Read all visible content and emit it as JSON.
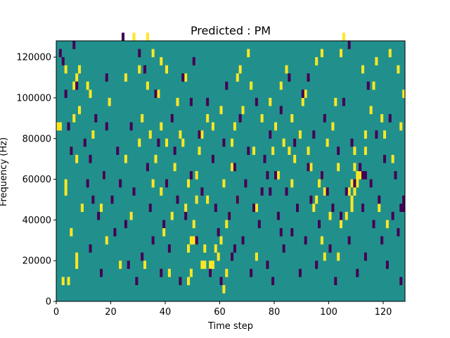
{
  "chart_data": {
    "type": "heatmap",
    "title": "Predicted : PM",
    "xlabel": "Time step",
    "ylabel": "Frequency (Hz)",
    "xlim": [
      0,
      128
    ],
    "ylim": [
      0,
      128000
    ],
    "x_ticks": [
      0,
      20,
      40,
      60,
      80,
      100,
      120
    ],
    "y_ticks": [
      0,
      20000,
      40000,
      60000,
      80000,
      100000,
      120000
    ],
    "x_tick_labels": [
      "0",
      "20",
      "40",
      "60",
      "80",
      "100",
      "120"
    ],
    "y_tick_labels": [
      "0",
      "20000",
      "40000",
      "60000",
      "80000",
      "100000",
      "120000"
    ],
    "n_time_steps": 128,
    "n_freq_bins": 32,
    "freq_bin_width_hz": 4000,
    "colormap": "viridis",
    "colors": {
      "background": "#21908c",
      "high": "#fde725",
      "low": "#440154"
    },
    "value_levels": {
      "low": -1,
      "background": 0,
      "high": 1
    },
    "high_cells": [
      [
        0,
        21
      ],
      [
        1,
        21
      ],
      [
        2,
        2
      ],
      [
        3,
        13
      ],
      [
        3,
        14
      ],
      [
        3,
        28
      ],
      [
        4,
        2
      ],
      [
        5,
        8
      ],
      [
        6,
        26
      ],
      [
        6,
        22
      ],
      [
        7,
        17
      ],
      [
        7,
        27
      ],
      [
        7,
        4
      ],
      [
        7,
        5
      ],
      [
        8,
        23
      ],
      [
        8,
        28
      ],
      [
        9,
        11
      ],
      [
        11,
        26
      ],
      [
        12,
        25
      ],
      [
        13,
        20
      ],
      [
        16,
        11
      ],
      [
        17,
        15
      ],
      [
        19,
        24
      ],
      [
        23,
        4
      ],
      [
        25,
        17
      ],
      [
        25,
        27
      ],
      [
        27,
        10
      ],
      [
        28,
        32
      ],
      [
        30,
        28
      ],
      [
        30,
        19
      ],
      [
        31,
        22
      ],
      [
        32,
        4
      ],
      [
        33,
        26
      ],
      [
        34,
        20
      ],
      [
        35,
        30
      ],
      [
        35,
        14
      ],
      [
        36,
        17
      ],
      [
        37,
        25
      ],
      [
        38,
        13
      ],
      [
        38,
        29
      ],
      [
        38,
        21
      ],
      [
        39,
        8
      ],
      [
        40,
        28
      ],
      [
        40,
        19
      ],
      [
        41,
        3
      ],
      [
        42,
        10
      ],
      [
        43,
        16
      ],
      [
        45,
        20
      ],
      [
        46,
        19
      ],
      [
        47,
        27
      ],
      [
        47,
        11
      ],
      [
        48,
        2
      ],
      [
        48,
        6
      ],
      [
        48,
        14
      ],
      [
        49,
        3
      ],
      [
        49,
        7
      ],
      [
        50,
        9
      ],
      [
        51,
        12
      ],
      [
        51,
        15
      ],
      [
        52,
        18
      ],
      [
        53,
        20
      ],
      [
        54,
        4
      ],
      [
        54,
        6
      ],
      [
        55,
        12
      ],
      [
        55,
        22
      ],
      [
        56,
        3
      ],
      [
        56,
        4
      ],
      [
        57,
        4
      ],
      [
        58,
        6
      ],
      [
        60,
        7
      ],
      [
        61,
        1
      ],
      [
        61,
        14
      ],
      [
        62,
        9
      ],
      [
        63,
        10
      ],
      [
        64,
        16
      ],
      [
        64,
        19
      ],
      [
        65,
        21
      ],
      [
        66,
        12
      ],
      [
        67,
        28
      ],
      [
        68,
        23
      ],
      [
        70,
        30
      ],
      [
        71,
        26
      ],
      [
        72,
        18
      ],
      [
        73,
        11
      ],
      [
        75,
        22
      ],
      [
        78,
        24
      ],
      [
        79,
        18
      ],
      [
        80,
        21
      ],
      [
        81,
        15
      ],
      [
        82,
        26
      ],
      [
        83,
        19
      ],
      [
        84,
        28
      ],
      [
        85,
        18
      ],
      [
        86,
        14
      ],
      [
        87,
        17
      ],
      [
        89,
        20
      ],
      [
        90,
        24
      ],
      [
        91,
        25
      ],
      [
        92,
        18
      ],
      [
        93,
        16
      ],
      [
        94,
        11
      ],
      [
        95,
        12
      ],
      [
        96,
        14
      ],
      [
        97,
        15
      ],
      [
        98,
        13
      ],
      [
        99,
        19
      ],
      [
        100,
        10
      ],
      [
        101,
        21
      ],
      [
        102,
        24
      ],
      [
        103,
        16
      ],
      [
        104,
        30
      ],
      [
        105,
        32
      ],
      [
        106,
        10
      ],
      [
        107,
        13
      ],
      [
        108,
        11
      ],
      [
        108,
        12
      ],
      [
        108,
        14
      ],
      [
        109,
        13
      ],
      [
        109,
        16
      ],
      [
        109,
        18
      ],
      [
        110,
        14
      ],
      [
        110,
        15
      ],
      [
        111,
        15
      ],
      [
        113,
        18
      ],
      [
        115,
        23
      ],
      [
        116,
        26
      ],
      [
        117,
        29
      ],
      [
        118,
        11
      ],
      [
        119,
        22
      ],
      [
        120,
        20
      ],
      [
        121,
        9
      ],
      [
        122,
        30
      ],
      [
        123,
        17
      ],
      [
        125,
        28
      ],
      [
        126,
        21
      ],
      [
        127,
        25
      ],
      [
        57,
        21
      ],
      [
        60,
        23
      ],
      [
        59,
        5
      ],
      [
        50,
        7
      ],
      [
        53,
        4
      ],
      [
        113,
        20
      ],
      [
        112,
        28
      ],
      [
        97,
        30
      ],
      [
        104,
        9
      ],
      [
        103,
        5
      ],
      [
        97,
        7
      ],
      [
        95,
        29
      ],
      [
        86,
        22
      ],
      [
        66,
        27
      ],
      [
        44,
        24
      ],
      [
        33,
        32
      ],
      [
        18,
        7
      ],
      [
        62,
        3
      ],
      [
        98,
        5
      ],
      [
        73,
        5
      ]
    ],
    "low_cells": [
      [
        1,
        30
      ],
      [
        2,
        29
      ],
      [
        3,
        25
      ],
      [
        4,
        21
      ],
      [
        5,
        18
      ],
      [
        6,
        31
      ],
      [
        7,
        26
      ],
      [
        10,
        19
      ],
      [
        11,
        14
      ],
      [
        12,
        17
      ],
      [
        12,
        6
      ],
      [
        13,
        12
      ],
      [
        14,
        22
      ],
      [
        15,
        10
      ],
      [
        16,
        3
      ],
      [
        17,
        15
      ],
      [
        18,
        27
      ],
      [
        18,
        21
      ],
      [
        20,
        12
      ],
      [
        21,
        8
      ],
      [
        22,
        18
      ],
      [
        23,
        14
      ],
      [
        24,
        32
      ],
      [
        25,
        9
      ],
      [
        26,
        4
      ],
      [
        27,
        21
      ],
      [
        28,
        13
      ],
      [
        29,
        2
      ],
      [
        30,
        30
      ],
      [
        31,
        5
      ],
      [
        32,
        28
      ],
      [
        33,
        16
      ],
      [
        34,
        11
      ],
      [
        35,
        7
      ],
      [
        36,
        25
      ],
      [
        37,
        19
      ],
      [
        38,
        3
      ],
      [
        39,
        9
      ],
      [
        40,
        14
      ],
      [
        41,
        6
      ],
      [
        42,
        22
      ],
      [
        43,
        18
      ],
      [
        44,
        12
      ],
      [
        45,
        2
      ],
      [
        46,
        27
      ],
      [
        47,
        10
      ],
      [
        49,
        15
      ],
      [
        50,
        29
      ],
      [
        51,
        7
      ],
      [
        52,
        20
      ],
      [
        53,
        13
      ],
      [
        55,
        24
      ],
      [
        56,
        3
      ],
      [
        57,
        17
      ],
      [
        58,
        11
      ],
      [
        59,
        8
      ],
      [
        60,
        2
      ],
      [
        61,
        19
      ],
      [
        62,
        26
      ],
      [
        63,
        10
      ],
      [
        64,
        5
      ],
      [
        65,
        16
      ],
      [
        66,
        12
      ],
      [
        67,
        22
      ],
      [
        68,
        7
      ],
      [
        69,
        14
      ],
      [
        70,
        18
      ],
      [
        71,
        3
      ],
      [
        72,
        11
      ],
      [
        73,
        24
      ],
      [
        74,
        9
      ],
      [
        75,
        13
      ],
      [
        76,
        17
      ],
      [
        77,
        4
      ],
      [
        78,
        20
      ],
      [
        79,
        2
      ],
      [
        80,
        15
      ],
      [
        81,
        10
      ],
      [
        82,
        23
      ],
      [
        83,
        6
      ],
      [
        84,
        13
      ],
      [
        85,
        27
      ],
      [
        86,
        8
      ],
      [
        87,
        19
      ],
      [
        88,
        11
      ],
      [
        89,
        3
      ],
      [
        90,
        25
      ],
      [
        91,
        7
      ],
      [
        92,
        16
      ],
      [
        93,
        12
      ],
      [
        94,
        20
      ],
      [
        95,
        4
      ],
      [
        96,
        9
      ],
      [
        97,
        15
      ],
      [
        98,
        22
      ],
      [
        99,
        13
      ],
      [
        100,
        6
      ],
      [
        101,
        11
      ],
      [
        102,
        2
      ],
      [
        103,
        18
      ],
      [
        104,
        10
      ],
      [
        105,
        24
      ],
      [
        106,
        13
      ],
      [
        107,
        7
      ],
      [
        108,
        19
      ],
      [
        109,
        14
      ],
      [
        110,
        3
      ],
      [
        111,
        16
      ],
      [
        112,
        11
      ],
      [
        113,
        5
      ],
      [
        114,
        26
      ],
      [
        115,
        14
      ],
      [
        116,
        9
      ],
      [
        117,
        20
      ],
      [
        118,
        12
      ],
      [
        119,
        7
      ],
      [
        120,
        17
      ],
      [
        121,
        4
      ],
      [
        122,
        22
      ],
      [
        123,
        10
      ],
      [
        124,
        15
      ],
      [
        125,
        8
      ],
      [
        126,
        2
      ],
      [
        127,
        12
      ],
      [
        49,
        24
      ],
      [
        65,
        6
      ],
      [
        82,
        8
      ],
      [
        92,
        27
      ],
      [
        107,
        31
      ],
      [
        113,
        15
      ],
      [
        112,
        15
      ],
      [
        77,
        15
      ],
      [
        78,
        13
      ],
      [
        126,
        11
      ],
      [
        127,
        11
      ]
    ]
  }
}
